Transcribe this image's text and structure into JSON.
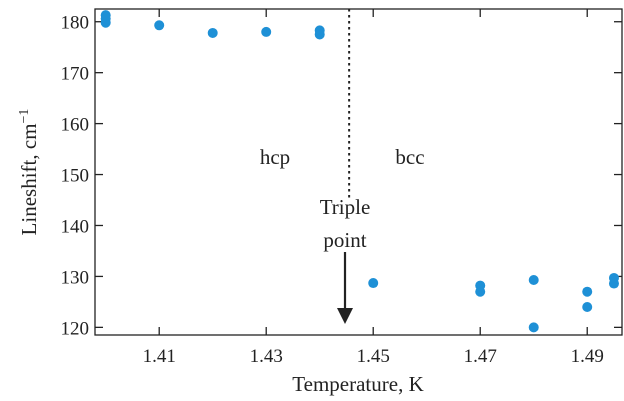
{
  "chart_data": {
    "type": "scatter",
    "xlabel": "Temperature, K",
    "ylabel": "Lineshift, cm",
    "ylabel_exponent": "−1",
    "xlim": [
      1.398,
      1.4965
    ],
    "ylim": [
      118.5,
      182.5
    ],
    "xticks": [
      1.41,
      1.43,
      1.45,
      1.47,
      1.49
    ],
    "xtick_labels": [
      "1.41",
      "1.43",
      "1.45",
      "1.47",
      "1.49"
    ],
    "yticks": [
      120,
      130,
      140,
      150,
      160,
      170,
      180
    ],
    "ytick_labels": [
      "120",
      "130",
      "140",
      "150",
      "160",
      "170",
      "180"
    ],
    "grid": false,
    "marker_color": "#1e90d6",
    "series": [
      {
        "x": [
          1.4,
          1.4,
          1.4,
          1.41,
          1.42,
          1.43,
          1.44,
          1.44,
          1.45,
          1.47,
          1.47,
          1.48,
          1.48,
          1.49,
          1.49,
          1.495,
          1.495
        ],
        "y": [
          181.3,
          180.6,
          179.8,
          179.3,
          177.8,
          178.0,
          178.3,
          177.5,
          128.7,
          128.2,
          127.0,
          129.3,
          120.0,
          127.0,
          124.0,
          129.7,
          128.6
        ]
      }
    ],
    "phase_boundary_x": 1.4455,
    "annotations": {
      "hcp": "hcp",
      "bcc": "bcc",
      "triple_line1": "Triple",
      "triple_line2": "point"
    }
  }
}
